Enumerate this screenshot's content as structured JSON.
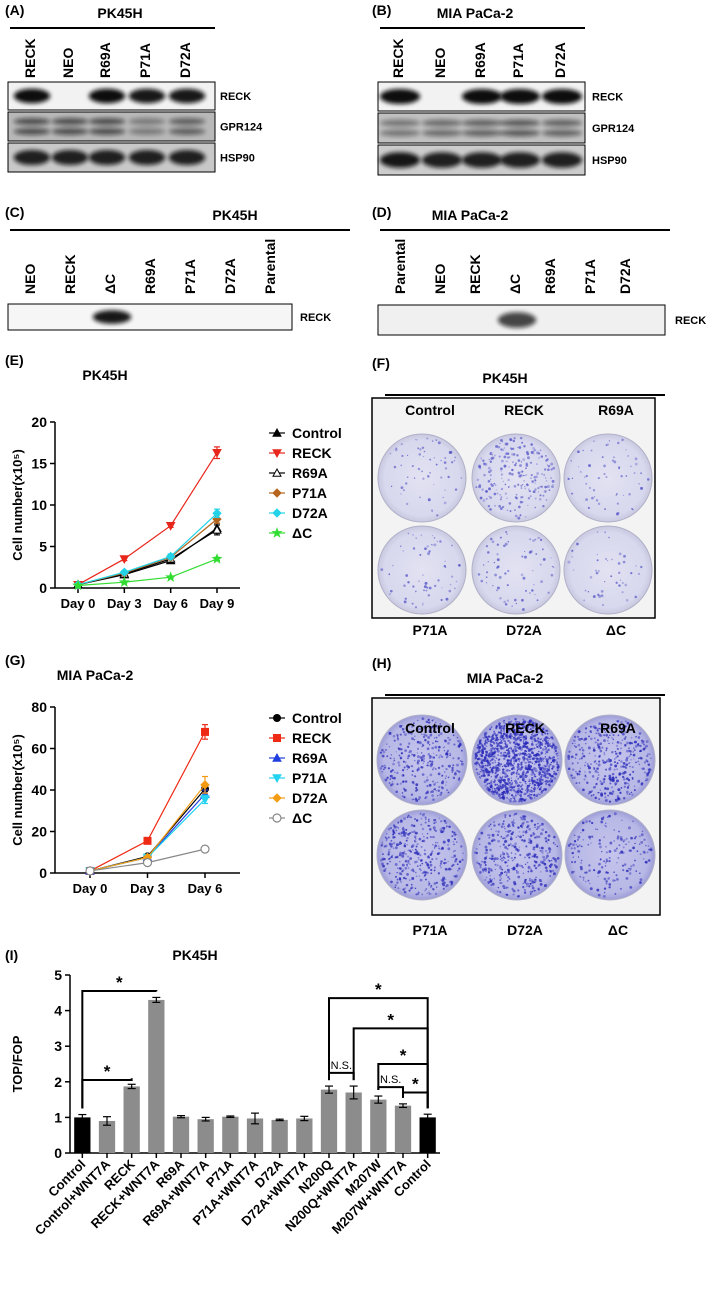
{
  "panels": {
    "A": {
      "label": "(A)",
      "title": "PK45H",
      "lanes": [
        "RECK",
        "NEO",
        "R69A",
        "P71A",
        "D72A"
      ],
      "rows": [
        "RECK",
        "GPR124",
        "HSP90"
      ]
    },
    "B": {
      "label": "(B)",
      "title": "MIA PaCa-2",
      "lanes": [
        "RECK",
        "NEO",
        "R69A",
        "P71A",
        "D72A"
      ],
      "rows": [
        "RECK",
        "GPR124",
        "HSP90"
      ]
    },
    "C": {
      "label": "(C)",
      "title": "PK45H",
      "lanes": [
        "NEO",
        "RECK",
        "ΔC",
        "R69A",
        "P71A",
        "D72A",
        "Parental"
      ],
      "rows": [
        "RECK"
      ]
    },
    "D": {
      "label": "(D)",
      "title": "MIA PaCa-2",
      "lanes": [
        "Parental",
        "NEO",
        "RECK",
        "ΔC",
        "R69A",
        "P71A",
        "D72A"
      ],
      "rows": [
        "RECK"
      ]
    },
    "F": {
      "label": "(F)",
      "title": "PK45H",
      "plates": [
        "Control",
        "RECK",
        "R69A",
        "P71A",
        "D72A",
        "ΔC"
      ]
    },
    "H": {
      "label": "(H)",
      "title": "MIA PaCa-2",
      "plates": [
        "Control",
        "RECK",
        "R69A",
        "P71A",
        "D72A",
        "ΔC"
      ]
    }
  },
  "chart_data": [
    {
      "type": "line",
      "label": "(E)",
      "title": "PK45H",
      "y_label": "Cell number(x10⁵)",
      "categories": [
        "Day 0",
        "Day 3",
        "Day 6",
        "Day 9"
      ],
      "ylim": [
        0,
        20
      ],
      "yticks": [
        0,
        5,
        10,
        15,
        20
      ],
      "series": [
        {
          "name": "Control",
          "color": "#000000",
          "marker": "triangle",
          "values": [
            0.4,
            1.6,
            3.3,
            7.2
          ],
          "errors": [
            0.05,
            0.2,
            0.3,
            0.6
          ]
        },
        {
          "name": "RECK",
          "color": "#e8261c",
          "marker": "triangle-down",
          "values": [
            0.4,
            3.5,
            7.5,
            16.3
          ],
          "errors": [
            0.05,
            0.2,
            0.2,
            0.7
          ]
        },
        {
          "name": "R69A",
          "color": "#000000",
          "marker": "triangle-open",
          "values": [
            0.4,
            1.7,
            3.5,
            7.0
          ],
          "errors": [
            0.05,
            0.2,
            0.3,
            0.6
          ]
        },
        {
          "name": "P71A",
          "color": "#b5651d",
          "marker": "diamond",
          "values": [
            0.4,
            1.8,
            3.7,
            8.3
          ],
          "errors": [
            0.05,
            0.2,
            0.3,
            0.5
          ]
        },
        {
          "name": "D72A",
          "color": "#22d3e8",
          "marker": "diamond",
          "values": [
            0.4,
            1.9,
            3.8,
            9.0
          ],
          "errors": [
            0.05,
            0.2,
            0.3,
            0.5
          ]
        },
        {
          "name": "ΔC",
          "color": "#33dd33",
          "marker": "star",
          "values": [
            0.3,
            0.7,
            1.3,
            3.5
          ],
          "errors": [
            0.05,
            0.1,
            0.1,
            0.2
          ]
        }
      ]
    },
    {
      "type": "line",
      "label": "(G)",
      "title": "MIA PaCa-2",
      "y_label": "Cell number(x10⁵)",
      "categories": [
        "Day 0",
        "Day 3",
        "Day 6"
      ],
      "ylim": [
        0,
        80
      ],
      "yticks": [
        0,
        20,
        40,
        60,
        80
      ],
      "series": [
        {
          "name": "Control",
          "color": "#000000",
          "marker": "circle",
          "values": [
            1,
            8,
            40.5
          ],
          "errors": [
            0.3,
            0.8,
            2
          ]
        },
        {
          "name": "RECK",
          "color": "#ee2a14",
          "marker": "square",
          "values": [
            1,
            15.5,
            68
          ],
          "errors": [
            0.3,
            0.8,
            3.5
          ]
        },
        {
          "name": "R69A",
          "color": "#1f3fe0",
          "marker": "triangle",
          "values": [
            1,
            7.5,
            38
          ],
          "errors": [
            0.3,
            0.8,
            2
          ]
        },
        {
          "name": "P71A",
          "color": "#22d3f0",
          "marker": "triangle-down",
          "values": [
            1,
            7.5,
            35.5
          ],
          "errors": [
            0.3,
            0.8,
            2
          ]
        },
        {
          "name": "D72A",
          "color": "#f39c12",
          "marker": "diamond",
          "values": [
            1,
            7.5,
            42.5
          ],
          "errors": [
            0.3,
            0.8,
            4
          ]
        },
        {
          "name": "ΔC",
          "color": "#888888",
          "marker": "circle-open",
          "values": [
            1,
            5,
            11.5
          ],
          "errors": [
            0.3,
            0.5,
            1.5
          ]
        }
      ]
    },
    {
      "type": "bar",
      "label": "(I)",
      "title": "PK45H",
      "y_label": "TOP/FOP",
      "categories": [
        "Control",
        "Control+WNT7A",
        "RECK",
        "RECK+WNT7A",
        "R69A",
        "R69A+WNT7A",
        "P71A",
        "P71A+WNT7A",
        "D72A",
        "D72A+WNT7A",
        "N200Q",
        "N200Q+WNT7A",
        "M207W",
        "M207W+WNT7A",
        "Control"
      ],
      "values": [
        1.0,
        0.9,
        1.87,
        4.3,
        1.02,
        0.95,
        1.02,
        0.97,
        0.93,
        0.97,
        1.78,
        1.7,
        1.5,
        1.33,
        1.0
      ],
      "errors": [
        0.08,
        0.12,
        0.06,
        0.07,
        0.03,
        0.05,
        0.02,
        0.15,
        0.02,
        0.06,
        0.1,
        0.18,
        0.1,
        0.05,
        0.09
      ],
      "colors": [
        "#000000",
        "#8c8c8c",
        "#8c8c8c",
        "#8c8c8c",
        "#8c8c8c",
        "#8c8c8c",
        "#8c8c8c",
        "#8c8c8c",
        "#8c8c8c",
        "#8c8c8c",
        "#8c8c8c",
        "#8c8c8c",
        "#8c8c8c",
        "#8c8c8c",
        "#000000"
      ],
      "ylim": [
        0,
        5
      ],
      "yticks": [
        0,
        1,
        2,
        3,
        4,
        5
      ],
      "annotations": [
        "*",
        "*",
        "*",
        "*",
        "*",
        "*",
        "N.S.",
        "N.S."
      ]
    }
  ]
}
